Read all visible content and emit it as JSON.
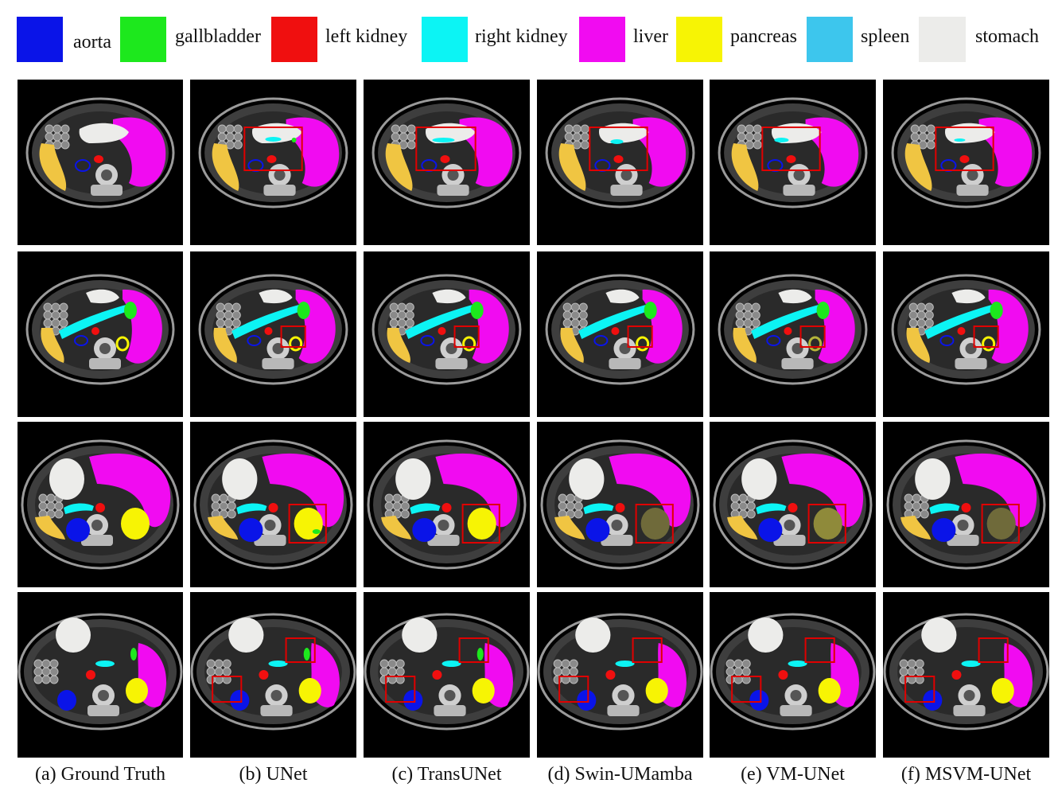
{
  "legend": [
    {
      "label": "aorta",
      "color": "#0a14e8"
    },
    {
      "label": "gallbladder",
      "color": "#1de81d"
    },
    {
      "label": "left kidney",
      "color": "#f00f0f"
    },
    {
      "label": "right kidney",
      "color": "#0cf4f4"
    },
    {
      "label": "liver",
      "color": "#f10bf1"
    },
    {
      "label": "pancreas",
      "color": "#f7f404"
    },
    {
      "label": "spleen",
      "color": "#3dc6ed"
    },
    {
      "label": "stomach",
      "color": "#ececea"
    }
  ],
  "captions": [
    "(a) Ground Truth",
    "(b) UNet",
    "(c) TransUNet",
    "(d) Swin-UMamba",
    "(e) VM-UNet",
    "(f) MSVM-UNet"
  ],
  "highlight_color": "#e00000"
}
